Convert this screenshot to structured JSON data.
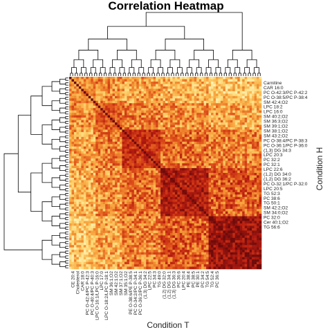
{
  "chart_data": {
    "type": "heatmap",
    "title": "Correlation Heatmap",
    "xlabel": "Condition T",
    "ylabel": "Condition H",
    "n": 80,
    "row_labels": [
      "Carnitine",
      "CAR 16:0",
      "PC O-42:3/PC P-42:2",
      "PC O-38:5/PC P-38:4",
      "SM 42:4;O2",
      "LPC 18:2",
      "LPC 16:0",
      "SM 40:2;O2",
      "SM 36:3;O2",
      "SM 39:1;O2",
      "SM 38:1;O2",
      "SM 43:2;O2",
      "PC O-38:4/PC P-38:3",
      "PC O-36:1/PC P-36:0",
      "(1,3) DG 34:3",
      "LPC 20:3",
      "PC 32:2",
      "PC 32:1",
      "LPC 22:6",
      "(1,2) DG 34:0",
      "(1,2) DG 36:2",
      "PC O-32:1/PC P-32:0",
      "LPC 20:5",
      "TG 52:3",
      "PC 38:6",
      "TG 50:1",
      "SM 42:2;O2",
      "SM 34:0;O2",
      "PC 32:0",
      "Cer 40:1;O2",
      "TG 56:6"
    ],
    "col_labels": [
      "CE 20:4",
      "Cholesterol",
      "CAR 18:0",
      "PC O-42:4/PC P-42:3",
      "PC O-40:4/PC P-40:3",
      "LPC O-16:1/LPC P-16:0",
      "LPC 17:0",
      "LPC O-18:2/LPC P-18:1",
      "SM 36:1;O2",
      "SM 42:1;O2",
      "SM 37:1;O2",
      "SM 35:1;O2",
      "PE O-38:6/PE P-38:5",
      "PC O-34:2/PC P-34:1",
      "PC O-36:2/PC P-36:1",
      "(1,3) DG 34:2",
      "LPC 22:5",
      "PC 34:3",
      "TG 49:0",
      "(1,2) DG 32:0",
      "(1,2) DG 34:1",
      "(1,3) DG 36:3",
      "PC 36:6",
      "LPC 20:4",
      "PE 38:4",
      "PC 38:5",
      "PE 30:1",
      "PC 34:2",
      "TG 54:5",
      "TG 52:4",
      "PC 36:5"
    ],
    "row_label_slots": [
      2,
      4,
      6,
      8,
      10,
      12,
      14,
      16,
      18,
      20,
      22,
      24,
      26,
      28,
      30,
      32,
      34,
      36,
      38,
      40,
      42,
      44,
      46,
      48,
      50,
      52,
      54,
      56,
      58,
      60,
      62
    ],
    "col_label_slots": [
      1,
      3,
      5,
      7,
      9,
      11,
      13,
      15,
      17,
      19,
      21,
      23,
      25,
      27,
      29,
      31,
      33,
      35,
      37,
      39,
      41,
      43,
      45,
      47,
      49,
      51,
      53,
      55,
      57,
      59,
      61
    ],
    "blocks": [
      {
        "start": 0,
        "end": 11,
        "level": 0.45
      },
      {
        "start": 11,
        "end": 22,
        "level": 0.6
      },
      {
        "start": 22,
        "end": 38,
        "level": 0.72
      },
      {
        "start": 38,
        "end": 58,
        "level": 0.82
      },
      {
        "start": 58,
        "end": 80,
        "level": 0.88
      }
    ],
    "value_range": [
      0,
      1
    ],
    "colormap": [
      "#fff7c4",
      "#fed976",
      "#f6a03a",
      "#e0531a",
      "#b81c10",
      "#6e0b0b"
    ],
    "legend": "none"
  }
}
